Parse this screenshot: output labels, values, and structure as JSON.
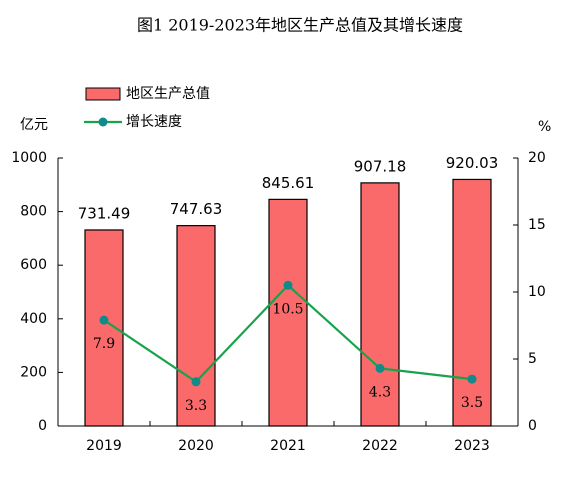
{
  "chart_data": {
    "type": "bar",
    "title": "图1 2019-2023年地区生产总值及其增长速度",
    "y_label": "亿元",
    "y2_label": "%",
    "categories": [
      "2019",
      "2020",
      "2021",
      "2022",
      "2023"
    ],
    "series": [
      {
        "name": "地区生产总值",
        "type": "bar",
        "color": "#fa6a6a",
        "values": [
          731.49,
          747.63,
          845.61,
          907.18,
          920.03
        ]
      },
      {
        "name": "增长速度",
        "type": "line",
        "axis": "y2",
        "color": "#16a34a",
        "marker_color": "#138a8a",
        "values": [
          7.9,
          3.3,
          10.5,
          4.3,
          3.5
        ]
      }
    ],
    "ylim": [
      0,
      1000
    ],
    "yticks": [
      0,
      200,
      400,
      600,
      800,
      1000
    ],
    "y2lim": [
      0,
      20
    ],
    "y2ticks": [
      0,
      5,
      10,
      15,
      20
    ]
  }
}
